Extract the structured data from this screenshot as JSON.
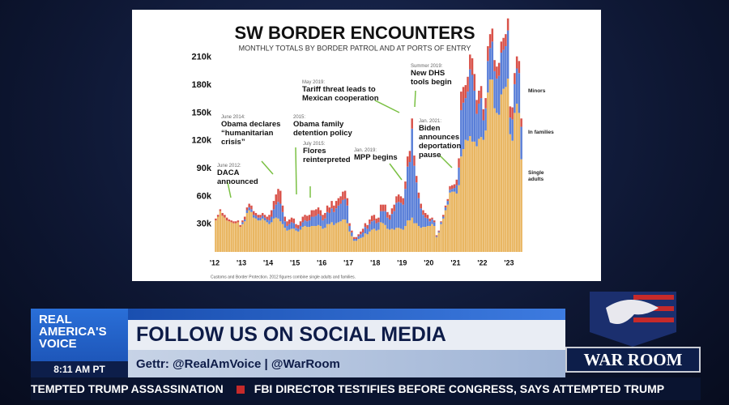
{
  "broadcast": {
    "logo": [
      "REAL",
      "AMERICA'S",
      "VOICE"
    ],
    "time": "8:11 AM PT",
    "headline": "FOLLOW US ON SOCIAL MEDIA",
    "subline": "Gettr: @RealAmVoice | @WarRoom",
    "show_logo": "WAR ROOM",
    "ticker": [
      "TEMPTED TRUMP ASSASSINATION",
      "FBI DIRECTOR TESTIFIES BEFORE CONGRESS, SAYS ATTEMPTED TRUMP"
    ]
  },
  "chart_data": {
    "type": "bar",
    "stacked": true,
    "title": "SW BORDER ENCOUNTERS",
    "subtitle": "MONTHLY TOTALS BY BORDER PATROL AND AT PORTS OF ENTRY",
    "source": "Customs and Border Protection. 2012 figures combine single adults and families.",
    "categories": [
      "'12",
      null,
      null,
      null,
      null,
      null,
      null,
      null,
      null,
      null,
      null,
      null,
      "'13",
      null,
      null,
      null,
      null,
      null,
      null,
      null,
      null,
      null,
      null,
      null,
      "'14",
      null,
      null,
      null,
      null,
      null,
      null,
      null,
      null,
      null,
      null,
      null,
      "'15",
      null,
      null,
      null,
      null,
      null,
      null,
      null,
      null,
      null,
      null,
      null,
      "'16",
      null,
      null,
      null,
      null,
      null,
      null,
      null,
      null,
      null,
      null,
      null,
      "'17",
      null,
      null,
      null,
      null,
      null,
      null,
      null,
      null,
      null,
      null,
      null,
      "'18",
      null,
      null,
      null,
      null,
      null,
      null,
      null,
      null,
      null,
      null,
      null,
      "'19",
      null,
      null,
      null,
      null,
      null,
      null,
      null,
      null,
      null,
      null,
      null,
      "'20",
      null,
      null,
      null,
      null,
      null,
      null,
      null,
      null,
      null,
      null,
      null,
      "'21",
      null,
      null,
      null,
      null,
      null,
      null,
      null,
      null,
      null,
      null,
      null,
      "'22",
      null,
      null,
      null,
      null,
      null,
      null,
      null,
      null,
      null,
      null,
      null,
      "'23",
      null,
      null,
      null,
      null,
      null
    ],
    "series": [
      {
        "name": "Single adults",
        "color": "#e9b662",
        "values": [
          34000,
          38000,
          44000,
          39000,
          37000,
          34000,
          33000,
          32000,
          31000,
          31000,
          32000,
          27000,
          30000,
          33000,
          42000,
          45000,
          43000,
          37000,
          36000,
          34000,
          34000,
          36000,
          34000,
          32000,
          30000,
          32000,
          36000,
          37000,
          36000,
          33000,
          30000,
          26000,
          23000,
          24000,
          25000,
          25000,
          23000,
          22000,
          24000,
          27000,
          28000,
          27000,
          27000,
          28000,
          28000,
          28000,
          29000,
          28000,
          25000,
          26000,
          30000,
          30000,
          32000,
          29000,
          31000,
          32000,
          33000,
          35000,
          35000,
          31000,
          22000,
          17000,
          12000,
          12000,
          14000,
          15000,
          16000,
          20000,
          19000,
          22000,
          24000,
          25000,
          23000,
          24000,
          32000,
          31000,
          29000,
          25000,
          24000,
          25000,
          24000,
          26000,
          26000,
          25000,
          24000,
          28000,
          34000,
          34000,
          37000,
          31000,
          31000,
          28000,
          26000,
          27000,
          27000,
          28000,
          28000,
          30000,
          28000,
          16000,
          21000,
          30000,
          36000,
          45000,
          51000,
          64000,
          65000,
          65000,
          63000,
          72000,
          103000,
          111000,
          121000,
          120000,
          125000,
          119000,
          119000,
          114000,
          122000,
          124000,
          121000,
          131000,
          172000,
          186000,
          186000,
          155000,
          150000,
          148000,
          170000,
          176000,
          178000,
          187000,
          127000,
          120000,
          150000,
          160000,
          150000,
          100000
        ]
      },
      {
        "name": "In families",
        "color": "#5a7fd8",
        "values": [
          0,
          0,
          0,
          0,
          0,
          0,
          0,
          0,
          0,
          0,
          0,
          0,
          2000,
          2000,
          3000,
          3000,
          3000,
          3000,
          3000,
          3000,
          3000,
          3000,
          3000,
          3000,
          4000,
          6000,
          10000,
          14000,
          18000,
          19000,
          13000,
          7000,
          5000,
          6000,
          7000,
          6000,
          3000,
          3000,
          4000,
          5000,
          6000,
          6000,
          7000,
          10000,
          10000,
          11000,
          12000,
          11000,
          9000,
          10000,
          13000,
          12000,
          15000,
          14000,
          16000,
          18000,
          19000,
          21000,
          22000,
          19000,
          6000,
          4000,
          2000,
          2000,
          3000,
          4000,
          5000,
          7000,
          6000,
          8000,
          9000,
          9000,
          8000,
          8000,
          12000,
          13000,
          15000,
          12000,
          11000,
          16000,
          20000,
          27000,
          28000,
          28000,
          27000,
          40000,
          58000,
          63000,
          96000,
          62000,
          44000,
          30000,
          21000,
          13000,
          10000,
          8000,
          5000,
          5000,
          4000,
          1000,
          1000,
          2000,
          2000,
          3000,
          4000,
          3000,
          3000,
          4000,
          9000,
          19000,
          50000,
          50000,
          45000,
          53000,
          72000,
          72000,
          55000,
          35000,
          38000,
          42000,
          21000,
          24000,
          34000,
          34000,
          41000,
          40000,
          37000,
          42000,
          45000,
          42000,
          44000,
          52000,
          18000,
          23000,
          31000,
          38000,
          43000,
          35000
        ]
      },
      {
        "name": "Minors",
        "color": "#d9524a",
        "values": [
          2000,
          2000,
          2000,
          3000,
          3000,
          3000,
          2000,
          2000,
          2000,
          2000,
          2000,
          2000,
          2000,
          3000,
          3000,
          4000,
          4000,
          4000,
          3000,
          3000,
          3000,
          3000,
          3000,
          3000,
          6000,
          7000,
          9000,
          11000,
          14000,
          14000,
          7000,
          5000,
          5000,
          5000,
          5000,
          5000,
          4000,
          4000,
          5000,
          6000,
          6000,
          6000,
          6000,
          7000,
          7000,
          7000,
          7000,
          6000,
          6000,
          6000,
          7000,
          6000,
          8000,
          7000,
          8000,
          8000,
          8000,
          9000,
          9000,
          8000,
          3000,
          2000,
          2000,
          2000,
          2000,
          3000,
          4000,
          4000,
          4000,
          5000,
          6000,
          6000,
          5000,
          5000,
          7000,
          7000,
          7000,
          6000,
          5000,
          6000,
          7000,
          7000,
          8000,
          7000,
          7000,
          8000,
          11000,
          12000,
          11000,
          11000,
          7000,
          6000,
          5000,
          5000,
          5000,
          4000,
          3000,
          2000,
          2000,
          1000,
          1000,
          1000,
          2000,
          2000,
          2000,
          4000,
          4000,
          4000,
          6000,
          10000,
          20000,
          17000,
          14000,
          16000,
          16000,
          18000,
          18000,
          15000,
          14000,
          13000,
          12000,
          11000,
          16000,
          15000,
          14000,
          12000,
          13000,
          14000,
          12000,
          13000,
          13000,
          13000,
          12000,
          13000,
          12000,
          13000,
          13000,
          9000
        ]
      }
    ],
    "ylim": [
      0,
      250000
    ],
    "yticks": [
      {
        "value": 30000,
        "label": "30k"
      },
      {
        "value": 60000,
        "label": "60k"
      },
      {
        "value": 90000,
        "label": "90k"
      },
      {
        "value": 120000,
        "label": "120k"
      },
      {
        "value": 150000,
        "label": "150k"
      },
      {
        "value": 180000,
        "label": "180k"
      },
      {
        "value": 210000,
        "label": "210k"
      }
    ],
    "annotations": [
      {
        "date": "June 2012:",
        "text": "DACA announced"
      },
      {
        "date": "June 2014:",
        "text": "Obama declares “humanitarian crisis”"
      },
      {
        "date": "2015:",
        "text": "Obama family detention policy"
      },
      {
        "date": "July 2015:",
        "text": "Flores reinterpreted"
      },
      {
        "date": "May 2019:",
        "text": "Tariff threat leads to Mexican cooperation"
      },
      {
        "date": "Jan. 2019:",
        "text": "MPP begins"
      },
      {
        "date": "Summer 2019:",
        "text": "New DHS tools begin"
      },
      {
        "date": "Jan. 2021:",
        "text": "Biden announces deportation pause"
      }
    ]
  }
}
